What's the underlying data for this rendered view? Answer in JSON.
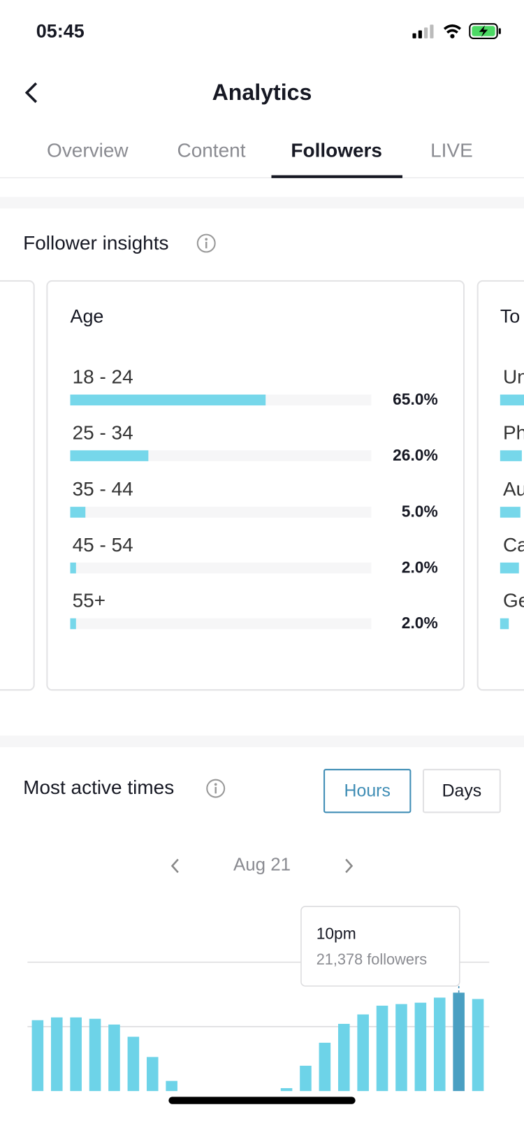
{
  "status_bar": {
    "time": "05:45"
  },
  "header": {
    "title": "Analytics"
  },
  "tabs": [
    "Overview",
    "Content",
    "Followers",
    "LIVE"
  ],
  "active_tab": 2,
  "follower_insights": {
    "title": "Follower insights",
    "age_card": {
      "type": "bar",
      "title": "Age",
      "xlim": [
        0,
        100
      ],
      "color": "#76d7ea",
      "categories": [
        "18 - 24",
        "25 - 34",
        "35 - 44",
        "45 - 54",
        "55+"
      ],
      "values": [
        65,
        26,
        5,
        2,
        2
      ],
      "value_labels": [
        "65.0%",
        "26.0%",
        "5.0%",
        "2.0%",
        "2.0%"
      ]
    },
    "next_card": {
      "title": "To",
      "rows": [
        "Un",
        "Ph",
        "Au",
        "Ca",
        "Ge"
      ]
    }
  },
  "most_active_times": {
    "title": "Most active times",
    "toggle": [
      "Hours",
      "Days"
    ],
    "active_toggle": 0,
    "date": "Aug 21",
    "chart_data": {
      "type": "bar",
      "color": "#6dd3e8",
      "highlight_color": "#4a9fc2",
      "categories": [
        null,
        null,
        null,
        null,
        null,
        null,
        null,
        null,
        null,
        null,
        null,
        null,
        null,
        null,
        null,
        null,
        null,
        null,
        null,
        null,
        null,
        null,
        "10pm",
        null
      ],
      "values": [
        15400,
        16000,
        16000,
        15700,
        14450,
        11800,
        7400,
        2200,
        0,
        0,
        0,
        0,
        0,
        630,
        5500,
        10500,
        14600,
        16650,
        18550,
        18900,
        19200,
        20300,
        21378,
        20000
      ],
      "value_labels": [
        null,
        null,
        null,
        null,
        null,
        null,
        null,
        null,
        null,
        null,
        null,
        null,
        null,
        null,
        null,
        null,
        null,
        null,
        null,
        null,
        null,
        null,
        "21,378 followers",
        null
      ],
      "ylim": [
        0,
        28000
      ],
      "yticks": [
        14000,
        28000
      ],
      "grid": true
    }
  }
}
